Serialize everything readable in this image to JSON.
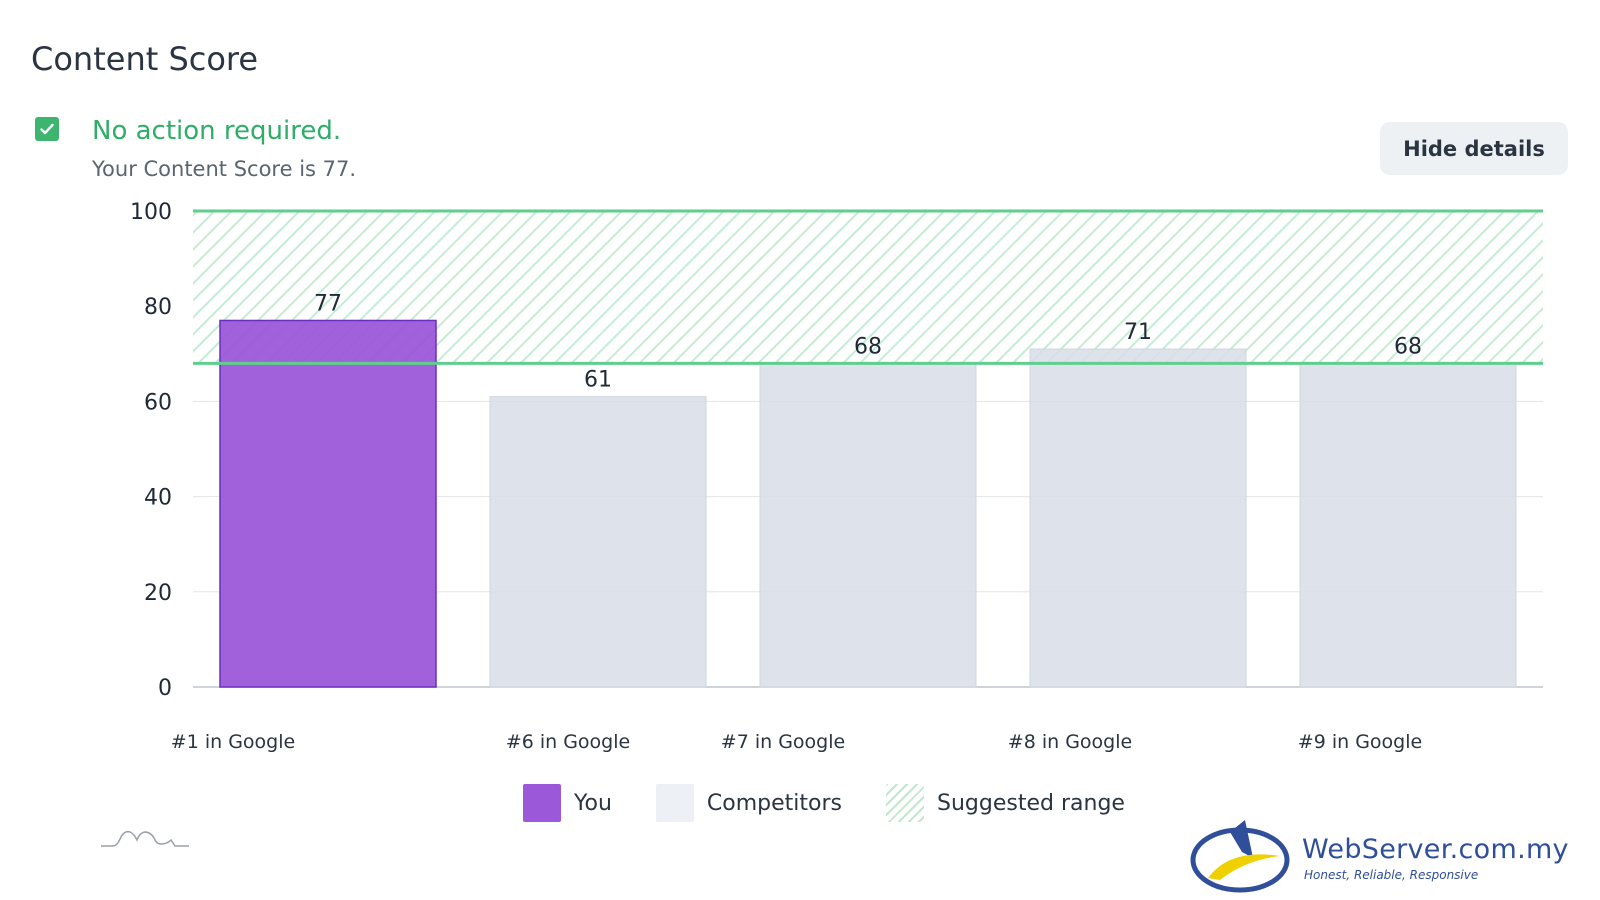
{
  "header": {
    "title": "Content Score",
    "hide_button_label": "Hide details"
  },
  "status": {
    "icon": "checkbox-checked-icon",
    "heading": "No action required.",
    "detail": "Your Content Score is 77."
  },
  "chart_data": {
    "type": "bar",
    "categories": [
      "#1 in Google",
      "#6 in Google",
      "#7 in Google",
      "#8 in Google",
      "#9 in Google"
    ],
    "values": [
      77,
      61,
      68,
      71,
      68
    ],
    "series": [
      {
        "name": "You",
        "color": "#9b59d9"
      },
      {
        "name": "Competitors",
        "color": "#d8dee7"
      }
    ],
    "highlight_index": 0,
    "suggested_range": [
      68,
      100
    ],
    "suggested_range_color": "#5fce8e",
    "ylim": [
      0,
      100
    ],
    "yticks": [
      0,
      20,
      40,
      60,
      80,
      100
    ],
    "grid": true,
    "legend_position": "bottom",
    "legend": [
      "You",
      "Competitors",
      "Suggested range"
    ]
  },
  "branding": {
    "name": "WebServer.com.my",
    "tagline": "Honest, Reliable, Responsive"
  }
}
